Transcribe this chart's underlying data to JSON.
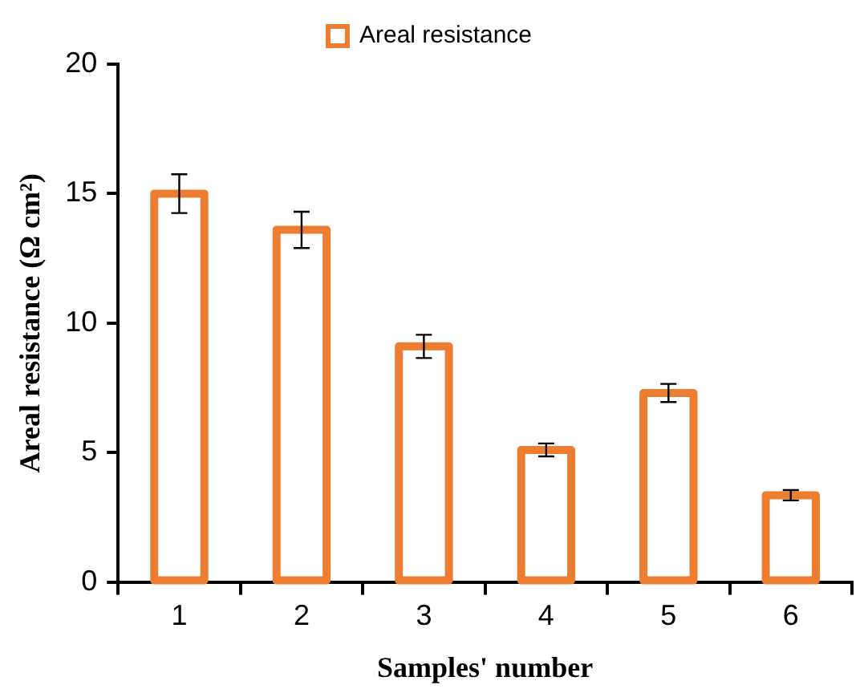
{
  "chart_data": {
    "type": "bar",
    "xlabel": "Samples' number",
    "ylabel": "Areal resistance (Ω cm²)",
    "categories": [
      "1",
      "2",
      "3",
      "4",
      "5",
      "6"
    ],
    "series": [
      {
        "name": "Areal resistance",
        "color": "#ed7d31",
        "values": [
          15,
          13.6,
          9.1,
          5.1,
          7.3,
          3.35
        ],
        "errors": [
          0.75,
          0.7,
          0.45,
          0.25,
          0.35,
          0.2
        ]
      }
    ],
    "ylim": [
      0,
      20
    ],
    "yticks": [
      0,
      5,
      10,
      15,
      20
    ],
    "grid": false,
    "legend": "top"
  }
}
